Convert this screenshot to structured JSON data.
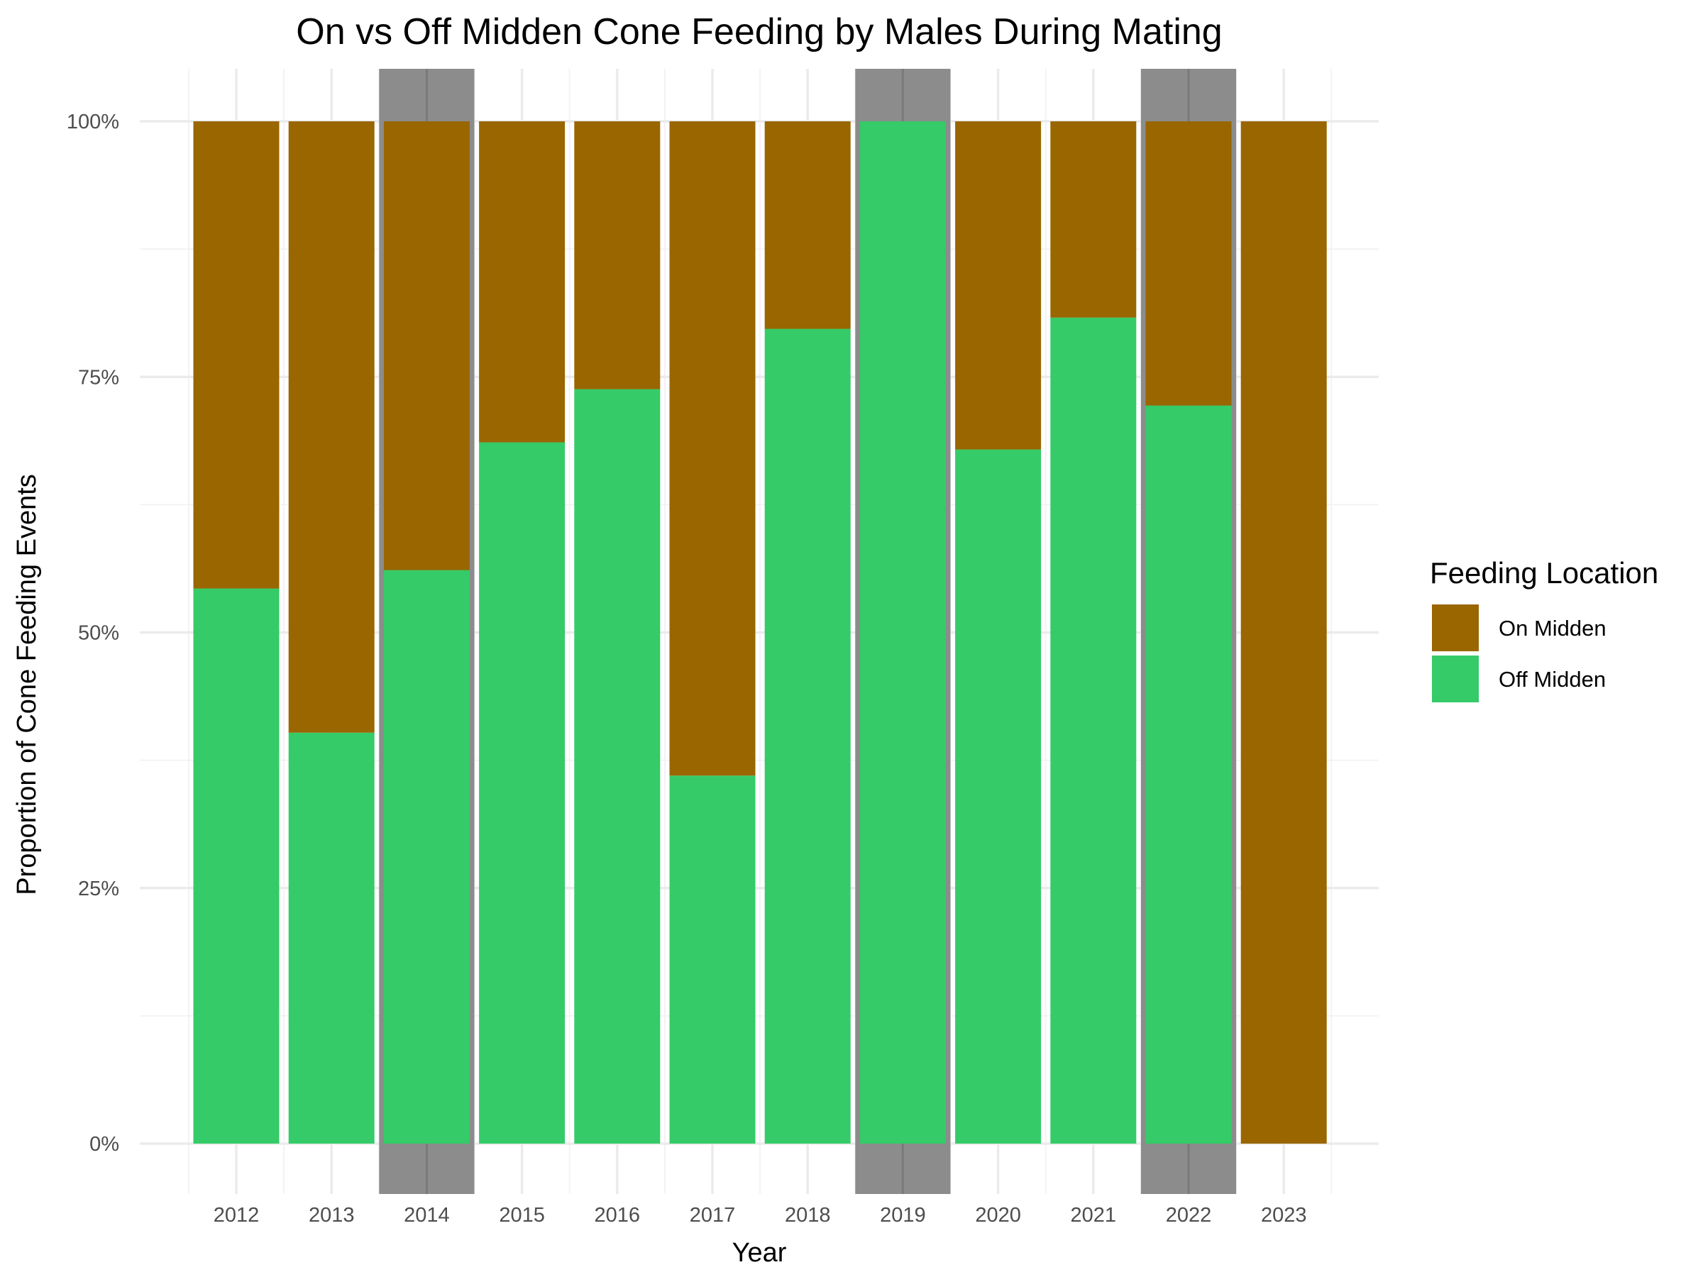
{
  "chart_data": {
    "type": "bar",
    "stacked": true,
    "title": "On vs Off Midden Cone Feeding by Males During Mating",
    "xlabel": "Year",
    "ylabel": "Proportion of Cone Feeding Events",
    "categories": [
      "2012",
      "2013",
      "2014",
      "2015",
      "2016",
      "2017",
      "2018",
      "2019",
      "2020",
      "2021",
      "2022",
      "2023"
    ],
    "y_ticks": [
      0,
      0.25,
      0.5,
      0.75,
      1.0
    ],
    "y_tick_labels": [
      "0%",
      "25%",
      "50%",
      "75%",
      "100%"
    ],
    "ylim": [
      0,
      1
    ],
    "legend": {
      "title": "Feeding Location",
      "position": "right",
      "entries": [
        {
          "name": "On Midden",
          "color": "#996600"
        },
        {
          "name": "Off Midden",
          "color": "#35CB68"
        }
      ]
    },
    "series": [
      {
        "name": "Off Midden",
        "color": "#35CB68",
        "values": [
          0.543,
          0.402,
          0.561,
          0.686,
          0.738,
          0.36,
          0.797,
          1.0,
          0.679,
          0.808,
          0.722,
          0.0
        ]
      },
      {
        "name": "On Midden",
        "color": "#996600",
        "values": [
          0.457,
          0.598,
          0.439,
          0.314,
          0.262,
          0.64,
          0.203,
          0.0,
          0.321,
          0.192,
          0.278,
          1.0
        ]
      }
    ],
    "highlighted_categories": [
      "2014",
      "2019",
      "2022"
    ],
    "highlight_color": "#8c8c8c",
    "grid": true
  }
}
